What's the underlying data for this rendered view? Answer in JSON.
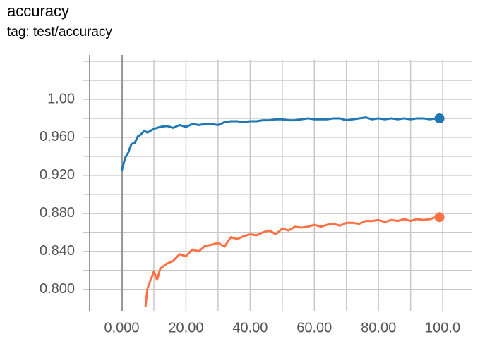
{
  "chart_data": {
    "type": "line",
    "title": "accuracy",
    "subtitle": "tag: test/accuracy",
    "xlim": [
      -12,
      109
    ],
    "ylim": [
      0.782,
      1.0415
    ],
    "xticks": [
      {
        "value": 0,
        "label": "0.000"
      },
      {
        "value": 20,
        "label": "20.00"
      },
      {
        "value": 40,
        "label": "40.00"
      },
      {
        "value": 60,
        "label": "60.00"
      },
      {
        "value": 80,
        "label": "80.00"
      },
      {
        "value": 100,
        "label": "100.0"
      }
    ],
    "xminorticks": [
      -10,
      10,
      30,
      50,
      70,
      90
    ],
    "yticks": [
      {
        "value": 0.8,
        "label": "0.800"
      },
      {
        "value": 0.84,
        "label": "0.840"
      },
      {
        "value": 0.88,
        "label": "0.880"
      },
      {
        "value": 0.92,
        "label": "0.920"
      },
      {
        "value": 0.96,
        "label": "0.960"
      },
      {
        "value": 1.0,
        "label": "1.00"
      }
    ],
    "yminorticks": [
      0.82,
      0.86,
      0.9,
      0.94,
      0.98,
      1.02,
      1.04
    ],
    "grid": true,
    "series": [
      {
        "color": "#1f77b4",
        "x": [
          0,
          1,
          2,
          3,
          4,
          5,
          6,
          7,
          8,
          10,
          12,
          14,
          16,
          18,
          20,
          22,
          24,
          26,
          28,
          30,
          32,
          34,
          36,
          38,
          40,
          42,
          44,
          46,
          48,
          50,
          52,
          54,
          56,
          58,
          60,
          62,
          64,
          66,
          68,
          70,
          72,
          74,
          76,
          78,
          80,
          82,
          84,
          86,
          88,
          90,
          92,
          94,
          96,
          98,
          99
        ],
        "values": [
          0.925,
          0.938,
          0.944,
          0.953,
          0.954,
          0.961,
          0.963,
          0.967,
          0.965,
          0.969,
          0.971,
          0.972,
          0.97,
          0.973,
          0.971,
          0.974,
          0.973,
          0.974,
          0.974,
          0.973,
          0.976,
          0.977,
          0.977,
          0.976,
          0.977,
          0.977,
          0.978,
          0.978,
          0.979,
          0.979,
          0.978,
          0.978,
          0.979,
          0.98,
          0.979,
          0.979,
          0.979,
          0.98,
          0.98,
          0.978,
          0.979,
          0.98,
          0.981,
          0.979,
          0.98,
          0.979,
          0.98,
          0.979,
          0.98,
          0.979,
          0.98,
          0.98,
          0.979,
          0.98,
          0.98
        ]
      },
      {
        "color": "#ff7043",
        "x": [
          7,
          8,
          10,
          11,
          12,
          14,
          16,
          18,
          20,
          22,
          24,
          26,
          28,
          30,
          32,
          34,
          36,
          38,
          40,
          42,
          44,
          46,
          48,
          50,
          52,
          54,
          56,
          58,
          60,
          62,
          64,
          66,
          68,
          70,
          72,
          74,
          76,
          78,
          80,
          82,
          84,
          86,
          88,
          90,
          92,
          94,
          96,
          98,
          99
        ],
        "values": [
          0.77,
          0.801,
          0.819,
          0.81,
          0.822,
          0.827,
          0.83,
          0.837,
          0.835,
          0.842,
          0.84,
          0.846,
          0.847,
          0.849,
          0.845,
          0.855,
          0.853,
          0.856,
          0.858,
          0.857,
          0.86,
          0.862,
          0.858,
          0.864,
          0.862,
          0.866,
          0.865,
          0.866,
          0.868,
          0.866,
          0.868,
          0.869,
          0.867,
          0.87,
          0.87,
          0.869,
          0.872,
          0.872,
          0.873,
          0.871,
          0.873,
          0.872,
          0.874,
          0.872,
          0.874,
          0.873,
          0.874,
          0.876,
          0.876
        ]
      }
    ]
  }
}
